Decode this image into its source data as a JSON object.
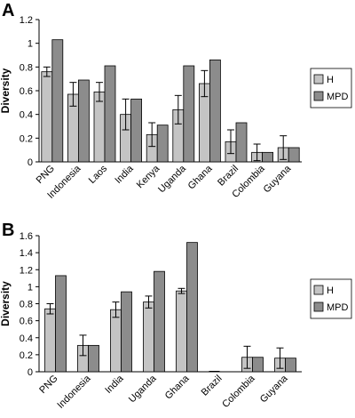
{
  "colors": {
    "H": "#c4c4c4",
    "MPD": "#8c8c8c",
    "axis": "#000000"
  },
  "chart_data": [
    {
      "panel": "A",
      "type": "bar",
      "ylabel": "Diversity",
      "ylim": [
        0,
        1.2
      ],
      "yticks": [
        "0",
        "0.2",
        "0.4",
        "0.6",
        "0.8",
        "1",
        "1.2"
      ],
      "legend_position": "right",
      "categories": [
        "PNG",
        "Indonesia",
        "Laos",
        "India",
        "Kenya",
        "Uganda",
        "Ghana",
        "Brazil",
        "Colombia",
        "Guyana"
      ],
      "series": [
        {
          "name": "H",
          "values": [
            0.76,
            0.57,
            0.59,
            0.4,
            0.23,
            0.44,
            0.66,
            0.17,
            0.08,
            0.12
          ],
          "errors": [
            0.04,
            0.1,
            0.08,
            0.13,
            0.1,
            0.12,
            0.11,
            0.1,
            0.07,
            0.1
          ]
        },
        {
          "name": "MPD",
          "values": [
            1.03,
            0.69,
            0.81,
            0.53,
            0.31,
            0.81,
            0.86,
            0.33,
            0.08,
            0.12
          ]
        }
      ]
    },
    {
      "panel": "B",
      "type": "bar",
      "ylabel": "Diversity",
      "ylim": [
        0,
        1.6
      ],
      "yticks": [
        "0",
        "0.2",
        "0.4",
        "0.6",
        "0.8",
        "1",
        "1.2",
        "1.4",
        "1.6"
      ],
      "legend_position": "right",
      "categories": [
        "PNG",
        "Indonesia",
        "India",
        "Uganda",
        "Ghana",
        "Brazil",
        "Colombia",
        "Guyana"
      ],
      "series": [
        {
          "name": "H",
          "values": [
            0.74,
            0.31,
            0.73,
            0.82,
            0.95,
            0.0,
            0.17,
            0.16
          ],
          "errors": [
            0.06,
            0.12,
            0.09,
            0.07,
            0.03,
            0.0,
            0.13,
            0.12
          ]
        },
        {
          "name": "MPD",
          "values": [
            1.13,
            0.31,
            0.94,
            1.18,
            1.52,
            0.0,
            0.17,
            0.16
          ]
        }
      ]
    }
  ]
}
